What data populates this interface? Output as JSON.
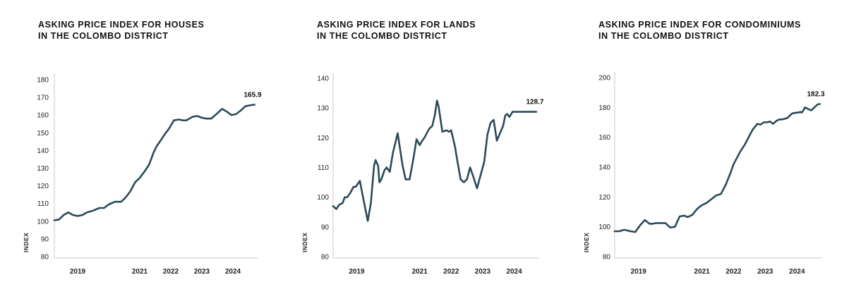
{
  "colors": {
    "line": "#2b4a5a",
    "axis": "#c9c9c9",
    "text": "#222222"
  },
  "chart_data": [
    {
      "type": "line",
      "title_lines": [
        "ASKING PRICE INDEX FOR HOUSES",
        "IN THE COLOMBO DISTRICT"
      ],
      "ylabel": "INDEX",
      "xlabel": "",
      "ylim": [
        80,
        180
      ],
      "yticks": [
        80,
        90,
        100,
        110,
        120,
        130,
        140,
        150,
        160,
        170,
        180
      ],
      "xlim": [
        2018.25,
        2024.75
      ],
      "xticks": [
        2019,
        2021,
        2022,
        2023,
        2024
      ],
      "xtick_labels": [
        "2019",
        "2021",
        "2022",
        "2023",
        "2024"
      ],
      "annotation": "165.9",
      "series": [
        {
          "name": "Houses",
          "x": [
            2018.25,
            2018.4,
            2018.55,
            2018.7,
            2018.85,
            2019.0,
            2019.15,
            2019.3,
            2019.5,
            2019.7,
            2019.85,
            2020.0,
            2020.2,
            2020.4,
            2020.55,
            2020.7,
            2020.85,
            2021.0,
            2021.15,
            2021.3,
            2021.45,
            2021.55,
            2021.65,
            2021.8,
            2021.95,
            2022.1,
            2022.25,
            2022.4,
            2022.5,
            2022.6,
            2022.7,
            2022.85,
            2023.0,
            2023.15,
            2023.3,
            2023.5,
            2023.65,
            2023.8,
            2023.95,
            2024.1,
            2024.25,
            2024.4,
            2024.55,
            2024.7
          ],
          "values": [
            100.5,
            101.0,
            103.5,
            105.0,
            103.5,
            103.0,
            103.5,
            105.0,
            106.0,
            107.5,
            107.5,
            109.5,
            111.0,
            111.0,
            113.5,
            117.0,
            122.0,
            124.5,
            128.0,
            132.0,
            139.0,
            142.5,
            145.0,
            149.0,
            152.5,
            157.0,
            157.5,
            157.0,
            157.0,
            158.0,
            159.0,
            159.5,
            158.5,
            158.0,
            158.0,
            161.0,
            163.5,
            162.0,
            160.0,
            160.5,
            162.5,
            165.0,
            165.5,
            165.9
          ]
        }
      ]
    },
    {
      "type": "line",
      "title_lines": [
        "ASKING PRICE INDEX FOR LANDS",
        "IN THE COLOMBO DISTRICT"
      ],
      "ylabel": "INDEX",
      "xlabel": "",
      "ylim": [
        80,
        140
      ],
      "yticks": [
        80,
        90,
        100,
        110,
        120,
        130,
        140
      ],
      "xlim": [
        2018.25,
        2024.75
      ],
      "xticks": [
        2019,
        2021,
        2022,
        2023,
        2024
      ],
      "xtick_labels": [
        "2019",
        "2021",
        "2022",
        "2023",
        "2024"
      ],
      "annotation": "128.7",
      "series": [
        {
          "name": "Lands",
          "x": [
            2018.25,
            2018.35,
            2018.45,
            2018.55,
            2018.62,
            2018.7,
            2018.8,
            2018.9,
            2018.97,
            2019.1,
            2019.2,
            2019.35,
            2019.45,
            2019.55,
            2019.6,
            2019.68,
            2019.72,
            2019.78,
            2019.88,
            2019.95,
            2020.05,
            2020.15,
            2020.3,
            2020.45,
            2020.55,
            2020.68,
            2020.8,
            2020.9,
            2021.0,
            2021.08,
            2021.15,
            2021.3,
            2021.4,
            2021.48,
            2021.55,
            2021.6,
            2021.72,
            2021.85,
            2021.93,
            2022.0,
            2022.12,
            2022.2,
            2022.3,
            2022.4,
            2022.5,
            2022.6,
            2022.7,
            2022.82,
            2022.95,
            2023.05,
            2023.15,
            2023.25,
            2023.35,
            2023.45,
            2023.55,
            2023.65,
            2023.72,
            2023.78,
            2023.85,
            2023.95,
            2024.05,
            2024.15,
            2024.25,
            2024.32,
            2024.4,
            2024.52,
            2024.6,
            2024.7
          ],
          "values": [
            97.0,
            96.0,
            97.5,
            98.0,
            100.0,
            100.0,
            101.5,
            103.5,
            103.5,
            105.5,
            100.0,
            92.0,
            98.0,
            110.5,
            112.5,
            110.5,
            105.0,
            106.0,
            109.0,
            110.0,
            108.5,
            115.0,
            121.5,
            111.0,
            106.0,
            106.0,
            113.0,
            119.5,
            117.5,
            119.0,
            120.0,
            123.0,
            124.0,
            127.5,
            132.5,
            130.5,
            122.0,
            122.5,
            122.0,
            122.5,
            117.0,
            112.0,
            106.0,
            105.0,
            106.0,
            110.0,
            107.0,
            103.0,
            108.0,
            112.0,
            121.0,
            125.0,
            126.0,
            119.0,
            121.5,
            124.0,
            127.5,
            128.0,
            127.0,
            128.7,
            128.7,
            128.7,
            128.7,
            128.7,
            128.7,
            128.7,
            128.7,
            128.7
          ]
        }
      ]
    },
    {
      "type": "line",
      "title_lines": [
        "ASKING PRICE INDEX FOR CONDOMINIUMS",
        "IN THE COLOMBO DISTRICT"
      ],
      "ylabel": "INDEX",
      "xlabel": "",
      "ylim": [
        80,
        200
      ],
      "yticks": [
        80,
        100,
        120,
        140,
        160,
        180,
        200
      ],
      "xlim": [
        2018.25,
        2024.75
      ],
      "xticks": [
        2019,
        2021,
        2022,
        2023,
        2024
      ],
      "xtick_labels": [
        "2019",
        "2021",
        "2022",
        "2023",
        "2024"
      ],
      "annotation": "182.3",
      "series": [
        {
          "name": "Condominiums",
          "x": [
            2018.25,
            2018.4,
            2018.55,
            2018.65,
            2018.75,
            2018.9,
            2019.05,
            2019.2,
            2019.35,
            2019.45,
            2019.55,
            2019.7,
            2019.85,
            2020.0,
            2020.15,
            2020.3,
            2020.45,
            2020.55,
            2020.7,
            2020.85,
            2021.0,
            2021.15,
            2021.3,
            2021.45,
            2021.6,
            2021.75,
            2021.9,
            2022.0,
            2022.1,
            2022.2,
            2022.35,
            2022.5,
            2022.6,
            2022.75,
            2022.85,
            2022.95,
            2023.05,
            2023.15,
            2023.25,
            2023.35,
            2023.45,
            2023.55,
            2023.7,
            2023.85,
            2024.0,
            2024.05,
            2024.1,
            2024.15,
            2024.2,
            2024.25,
            2024.3,
            2024.35,
            2024.45,
            2024.55,
            2024.65,
            2024.72
          ],
          "values": [
            97.0,
            97.0,
            98.0,
            97.5,
            97.0,
            96.5,
            101.0,
            104.5,
            102.0,
            102.0,
            102.5,
            102.5,
            102.5,
            99.5,
            100.0,
            107.0,
            107.5,
            106.5,
            108.0,
            112.0,
            114.5,
            116.0,
            118.5,
            121.0,
            122.0,
            128.0,
            136.0,
            142.0,
            146.0,
            150.0,
            155.0,
            161.0,
            165.0,
            169.0,
            168.5,
            170.0,
            170.0,
            170.5,
            169.0,
            171.0,
            172.0,
            172.0,
            173.0,
            176.0,
            176.5,
            176.5,
            177.0,
            176.5,
            178.0,
            180.0,
            179.5,
            179.0,
            178.0,
            180.0,
            182.0,
            182.3
          ]
        }
      ]
    }
  ]
}
